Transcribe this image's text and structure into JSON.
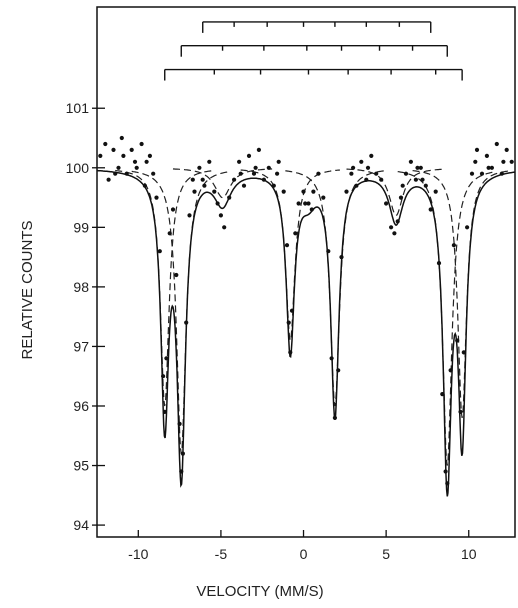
{
  "chart_data": {
    "type": "scatter",
    "title": "",
    "xlabel": "VELOCITY (MM/S)",
    "ylabel": "RELATIVE COUNTS",
    "xlim": [
      -12.5,
      12.8
    ],
    "ylim": [
      93.8,
      102.7
    ],
    "grid": false,
    "legend": "none",
    "x_ticks": [
      -10,
      -5,
      0,
      5,
      10
    ],
    "x_tick_labels": [
      "-10",
      "-5",
      "0",
      "5",
      "10"
    ],
    "y_ticks": [
      94,
      95,
      96,
      97,
      98,
      99,
      100,
      101
    ],
    "y_tick_labels": [
      "94",
      "95",
      "96",
      "97",
      "98",
      "99",
      "100",
      "101"
    ],
    "baseline": 100,
    "sextets": [
      {
        "lines": [
          -8.4,
          -7.4,
          -5.0,
          -0.8,
          1.9,
          5.6,
          8.7,
          9.6
        ],
        "markers": [
          -8.4,
          -5.4,
          -2.6,
          0.3,
          2.7,
          5.3,
          8.0,
          9.6
        ],
        "marker_y": 101.65
      },
      {
        "lines": [
          -7.4,
          -4.9,
          -2.4,
          0.2,
          2.3,
          4.6,
          6.6,
          8.7
        ],
        "markers": [
          -7.4,
          -4.9,
          -2.4,
          0.2,
          2.3,
          4.6,
          6.6,
          8.7
        ],
        "marker_y": 102.05
      },
      {
        "lines": [
          -6.1,
          -4.2,
          -2.2,
          0.0,
          1.9,
          3.8,
          5.8,
          7.7
        ],
        "markers": [
          -6.1,
          -4.2,
          -2.2,
          0.0,
          1.9,
          3.8,
          5.8,
          7.7
        ],
        "marker_y": 102.45
      }
    ],
    "fit_peaks": [
      {
        "x": -8.4,
        "depth": 4.1,
        "width": 0.28
      },
      {
        "x": -7.4,
        "depth": 5.0,
        "width": 0.3
      },
      {
        "x": -4.9,
        "depth": 0.55,
        "width": 0.6
      },
      {
        "x": -0.8,
        "depth": 3.0,
        "width": 0.3
      },
      {
        "x": 0.3,
        "depth": 0.4,
        "width": 0.6
      },
      {
        "x": 1.9,
        "depth": 4.1,
        "width": 0.3
      },
      {
        "x": 5.6,
        "depth": 0.85,
        "width": 0.5
      },
      {
        "x": 8.7,
        "depth": 5.1,
        "width": 0.3
      },
      {
        "x": 9.6,
        "depth": 4.3,
        "width": 0.28
      }
    ],
    "component_peaks": [
      {
        "x": -8.4,
        "depth": 4.0,
        "width": 0.32
      },
      {
        "x": -7.4,
        "depth": 4.8,
        "width": 0.34
      },
      {
        "x": -4.9,
        "depth": 0.5,
        "width": 0.6
      },
      {
        "x": -0.8,
        "depth": 2.9,
        "width": 0.34
      },
      {
        "x": 1.9,
        "depth": 4.0,
        "width": 0.34
      },
      {
        "x": 5.6,
        "depth": 0.8,
        "width": 0.5
      },
      {
        "x": 8.7,
        "depth": 5.0,
        "width": 0.34
      },
      {
        "x": 9.6,
        "depth": 4.2,
        "width": 0.32
      }
    ],
    "points": [
      [
        -12.3,
        100.2
      ],
      [
        -12.0,
        100.4
      ],
      [
        -11.8,
        99.8
      ],
      [
        -11.5,
        100.3
      ],
      [
        -11.2,
        100.0
      ],
      [
        -11.0,
        100.5
      ],
      [
        -10.7,
        99.9
      ],
      [
        -10.4,
        100.3
      ],
      [
        -10.1,
        100.0
      ],
      [
        -9.8,
        100.4
      ],
      [
        -9.6,
        99.7
      ],
      [
        -9.3,
        100.2
      ],
      [
        -9.1,
        99.9
      ],
      [
        -8.9,
        99.5
      ],
      [
        -8.7,
        98.6
      ],
      [
        -8.5,
        96.5
      ],
      [
        -8.4,
        95.9
      ],
      [
        -8.3,
        96.8
      ],
      [
        -8.1,
        98.9
      ],
      [
        -7.9,
        99.3
      ],
      [
        -7.7,
        98.2
      ],
      [
        -7.5,
        95.7
      ],
      [
        -7.4,
        94.9
      ],
      [
        -7.3,
        95.2
      ],
      [
        -7.1,
        97.4
      ],
      [
        -6.9,
        99.2
      ],
      [
        -6.6,
        99.6
      ],
      [
        -6.3,
        100.0
      ],
      [
        -6.0,
        99.7
      ],
      [
        -5.7,
        100.1
      ],
      [
        -5.4,
        99.6
      ],
      [
        -5.2,
        99.4
      ],
      [
        -5.0,
        99.2
      ],
      [
        -4.8,
        99.0
      ],
      [
        -4.5,
        99.5
      ],
      [
        -4.2,
        99.8
      ],
      [
        -3.9,
        100.1
      ],
      [
        -3.6,
        99.7
      ],
      [
        -3.3,
        100.2
      ],
      [
        -3.0,
        99.9
      ],
      [
        -2.7,
        100.3
      ],
      [
        -2.4,
        99.8
      ],
      [
        -2.1,
        100.0
      ],
      [
        -1.8,
        99.7
      ],
      [
        -1.5,
        100.1
      ],
      [
        -1.2,
        99.6
      ],
      [
        -1.0,
        98.7
      ],
      [
        -0.9,
        97.4
      ],
      [
        -0.8,
        96.9
      ],
      [
        -0.7,
        97.6
      ],
      [
        -0.5,
        98.9
      ],
      [
        -0.3,
        99.4
      ],
      [
        0.0,
        99.6
      ],
      [
        0.3,
        99.4
      ],
      [
        0.6,
        99.6
      ],
      [
        0.9,
        99.9
      ],
      [
        1.2,
        99.5
      ],
      [
        1.5,
        98.6
      ],
      [
        1.7,
        96.8
      ],
      [
        1.9,
        95.8
      ],
      [
        2.1,
        96.6
      ],
      [
        2.3,
        98.5
      ],
      [
        2.6,
        99.6
      ],
      [
        2.9,
        99.9
      ],
      [
        3.2,
        99.7
      ],
      [
        3.5,
        100.1
      ],
      [
        3.8,
        99.8
      ],
      [
        4.1,
        100.2
      ],
      [
        4.4,
        99.9
      ],
      [
        4.7,
        99.8
      ],
      [
        5.0,
        99.4
      ],
      [
        5.3,
        99.0
      ],
      [
        5.5,
        98.9
      ],
      [
        5.7,
        99.1
      ],
      [
        5.9,
        99.5
      ],
      [
        6.2,
        99.9
      ],
      [
        6.5,
        100.1
      ],
      [
        6.8,
        99.8
      ],
      [
        7.1,
        100.0
      ],
      [
        7.4,
        99.7
      ],
      [
        7.7,
        99.3
      ],
      [
        8.0,
        99.6
      ],
      [
        8.2,
        98.4
      ],
      [
        8.4,
        96.2
      ],
      [
        8.6,
        94.9
      ],
      [
        8.7,
        94.7
      ],
      [
        8.9,
        96.6
      ],
      [
        9.1,
        98.7
      ],
      [
        9.3,
        97.1
      ],
      [
        9.5,
        95.9
      ],
      [
        9.7,
        96.9
      ],
      [
        9.9,
        99.0
      ],
      [
        10.2,
        99.9
      ],
      [
        10.5,
        100.3
      ],
      [
        10.8,
        99.9
      ],
      [
        11.1,
        100.2
      ],
      [
        11.4,
        100.0
      ],
      [
        11.7,
        100.4
      ],
      [
        12.0,
        99.9
      ],
      [
        12.3,
        100.3
      ],
      [
        12.6,
        100.1
      ],
      [
        -11.4,
        99.9
      ],
      [
        -10.9,
        100.2
      ],
      [
        -10.2,
        100.1
      ],
      [
        -9.5,
        100.1
      ],
      [
        -6.7,
        99.8
      ],
      [
        -6.1,
        99.8
      ],
      [
        -3.8,
        99.9
      ],
      [
        -2.9,
        100.0
      ],
      [
        -1.6,
        99.9
      ],
      [
        0.1,
        99.4
      ],
      [
        0.5,
        99.3
      ],
      [
        3.0,
        100.0
      ],
      [
        3.9,
        100.0
      ],
      [
        6.0,
        99.7
      ],
      [
        6.9,
        100.0
      ],
      [
        7.2,
        99.8
      ],
      [
        10.4,
        100.1
      ],
      [
        11.2,
        100.0
      ],
      [
        12.1,
        100.1
      ]
    ]
  }
}
